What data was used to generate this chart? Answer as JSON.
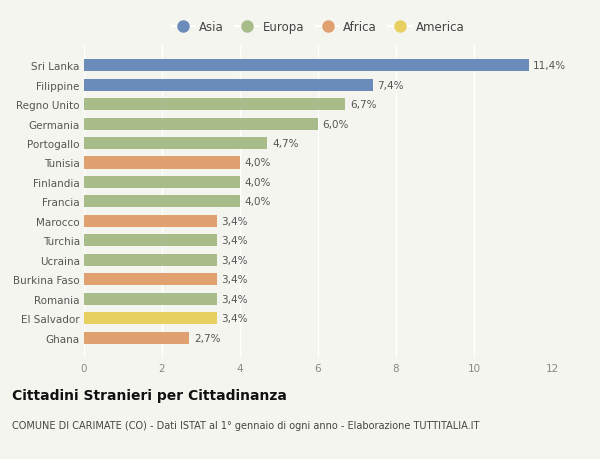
{
  "categories": [
    "Sri Lanka",
    "Filippine",
    "Regno Unito",
    "Germania",
    "Portogallo",
    "Tunisia",
    "Finlandia",
    "Francia",
    "Marocco",
    "Turchia",
    "Ucraina",
    "Burkina Faso",
    "Romania",
    "El Salvador",
    "Ghana"
  ],
  "values": [
    11.4,
    7.4,
    6.7,
    6.0,
    4.7,
    4.0,
    4.0,
    4.0,
    3.4,
    3.4,
    3.4,
    3.4,
    3.4,
    3.4,
    2.7
  ],
  "labels": [
    "11,4%",
    "7,4%",
    "6,7%",
    "6,0%",
    "4,7%",
    "4,0%",
    "4,0%",
    "4,0%",
    "3,4%",
    "3,4%",
    "3,4%",
    "3,4%",
    "3,4%",
    "3,4%",
    "2,7%"
  ],
  "continent": [
    "Asia",
    "Asia",
    "Europa",
    "Europa",
    "Europa",
    "Africa",
    "Europa",
    "Europa",
    "Africa",
    "Europa",
    "Europa",
    "Africa",
    "Europa",
    "America",
    "Africa"
  ],
  "colors": {
    "Asia": "#6b8cba",
    "Europa": "#a8bc8a",
    "Africa": "#e0a070",
    "America": "#e8d060"
  },
  "legend_order": [
    "Asia",
    "Europa",
    "Africa",
    "America"
  ],
  "title": "Cittadini Stranieri per Cittadinanza",
  "subtitle": "COMUNE DI CARIMATE (CO) - Dati ISTAT al 1° gennaio di ogni anno - Elaborazione TUTTITALIA.IT",
  "xlim": [
    0,
    12
  ],
  "xticks": [
    0,
    2,
    4,
    6,
    8,
    10,
    12
  ],
  "background_color": "#f5f5f0",
  "bar_height": 0.62,
  "label_fontsize": 7.5,
  "title_fontsize": 10,
  "subtitle_fontsize": 7,
  "ytick_fontsize": 7.5,
  "xtick_fontsize": 7.5,
  "legend_fontsize": 8.5
}
